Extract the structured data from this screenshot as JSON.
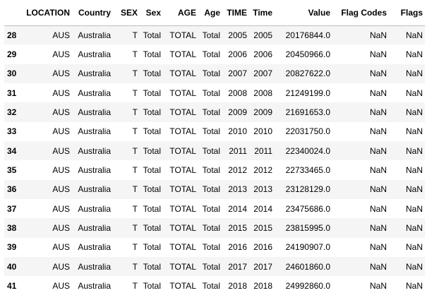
{
  "table": {
    "columns": [
      "LOCATION",
      "Country",
      "SEX",
      "Sex",
      "AGE",
      "Age",
      "TIME",
      "Time",
      "Value",
      "Flag Codes",
      "Flags"
    ],
    "rows": [
      {
        "index": "28",
        "cells": [
          "AUS",
          "Australia",
          "T",
          "Total",
          "TOTAL",
          "Total",
          "2005",
          "2005",
          "20176844.0",
          "NaN",
          "NaN"
        ]
      },
      {
        "index": "29",
        "cells": [
          "AUS",
          "Australia",
          "T",
          "Total",
          "TOTAL",
          "Total",
          "2006",
          "2006",
          "20450966.0",
          "NaN",
          "NaN"
        ]
      },
      {
        "index": "30",
        "cells": [
          "AUS",
          "Australia",
          "T",
          "Total",
          "TOTAL",
          "Total",
          "2007",
          "2007",
          "20827622.0",
          "NaN",
          "NaN"
        ]
      },
      {
        "index": "31",
        "cells": [
          "AUS",
          "Australia",
          "T",
          "Total",
          "TOTAL",
          "Total",
          "2008",
          "2008",
          "21249199.0",
          "NaN",
          "NaN"
        ]
      },
      {
        "index": "32",
        "cells": [
          "AUS",
          "Australia",
          "T",
          "Total",
          "TOTAL",
          "Total",
          "2009",
          "2009",
          "21691653.0",
          "NaN",
          "NaN"
        ]
      },
      {
        "index": "33",
        "cells": [
          "AUS",
          "Australia",
          "T",
          "Total",
          "TOTAL",
          "Total",
          "2010",
          "2010",
          "22031750.0",
          "NaN",
          "NaN"
        ]
      },
      {
        "index": "34",
        "cells": [
          "AUS",
          "Australia",
          "T",
          "Total",
          "TOTAL",
          "Total",
          "2011",
          "2011",
          "22340024.0",
          "NaN",
          "NaN"
        ]
      },
      {
        "index": "35",
        "cells": [
          "AUS",
          "Australia",
          "T",
          "Total",
          "TOTAL",
          "Total",
          "2012",
          "2012",
          "22733465.0",
          "NaN",
          "NaN"
        ]
      },
      {
        "index": "36",
        "cells": [
          "AUS",
          "Australia",
          "T",
          "Total",
          "TOTAL",
          "Total",
          "2013",
          "2013",
          "23128129.0",
          "NaN",
          "NaN"
        ]
      },
      {
        "index": "37",
        "cells": [
          "AUS",
          "Australia",
          "T",
          "Total",
          "TOTAL",
          "Total",
          "2014",
          "2014",
          "23475686.0",
          "NaN",
          "NaN"
        ]
      },
      {
        "index": "38",
        "cells": [
          "AUS",
          "Australia",
          "T",
          "Total",
          "TOTAL",
          "Total",
          "2015",
          "2015",
          "23815995.0",
          "NaN",
          "NaN"
        ]
      },
      {
        "index": "39",
        "cells": [
          "AUS",
          "Australia",
          "T",
          "Total",
          "TOTAL",
          "Total",
          "2016",
          "2016",
          "24190907.0",
          "NaN",
          "NaN"
        ]
      },
      {
        "index": "40",
        "cells": [
          "AUS",
          "Australia",
          "T",
          "Total",
          "TOTAL",
          "Total",
          "2017",
          "2017",
          "24601860.0",
          "NaN",
          "NaN"
        ]
      },
      {
        "index": "41",
        "cells": [
          "AUS",
          "Australia",
          "T",
          "Total",
          "TOTAL",
          "Total",
          "2018",
          "2018",
          "24992860.0",
          "NaN",
          "NaN"
        ]
      }
    ]
  },
  "colors": {
    "stripe": "#f5f5f5",
    "background": "#ffffff",
    "header_rule": "#bdbdbd"
  }
}
